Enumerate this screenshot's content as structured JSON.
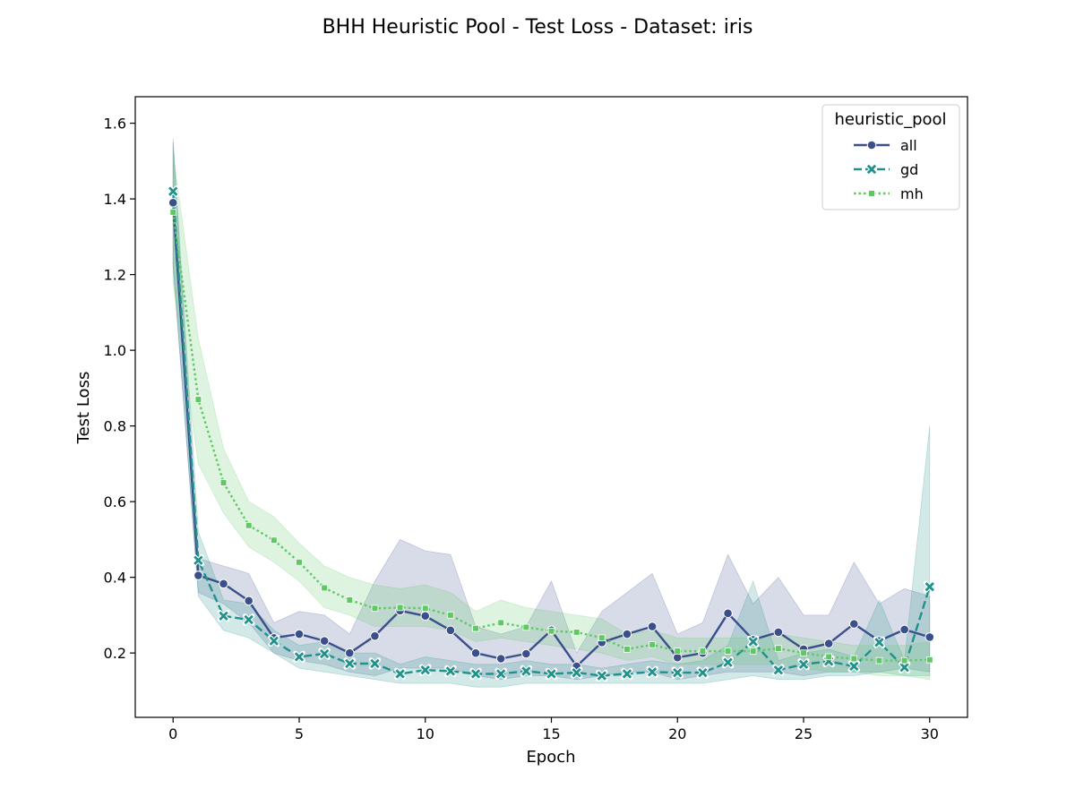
{
  "chart_data": {
    "type": "line",
    "title": "BHH Heuristic Pool - Test Loss - Dataset: iris",
    "xlabel": "Epoch",
    "ylabel": "Test Loss",
    "xlim": [
      -1.5,
      31.5
    ],
    "ylim": [
      0.03,
      1.67
    ],
    "xticks": [
      0,
      5,
      10,
      15,
      20,
      25,
      30
    ],
    "yticks": [
      0.2,
      0.4,
      0.6,
      0.8,
      1.0,
      1.2,
      1.4,
      1.6
    ],
    "ytick_labels": [
      "0.2",
      "0.4",
      "0.6",
      "0.8",
      "1.0",
      "1.2",
      "1.4",
      "1.6"
    ],
    "grid": false,
    "legend": {
      "title": "heuristic_pool",
      "position": "upper-right"
    },
    "x": [
      0,
      1,
      2,
      3,
      4,
      5,
      6,
      7,
      8,
      9,
      10,
      11,
      12,
      13,
      14,
      15,
      16,
      17,
      18,
      19,
      20,
      21,
      22,
      23,
      24,
      25,
      26,
      27,
      28,
      29,
      30
    ],
    "series": [
      {
        "name": "all",
        "color": "#3b4f8a",
        "line_style": "solid",
        "marker": "circle",
        "values": [
          1.39,
          0.405,
          0.383,
          0.338,
          0.24,
          0.25,
          0.232,
          0.2,
          0.245,
          0.312,
          0.298,
          0.26,
          0.2,
          0.185,
          0.198,
          0.26,
          0.165,
          0.228,
          0.25,
          0.27,
          0.188,
          0.2,
          0.305,
          0.235,
          0.255,
          0.21,
          0.225,
          0.277,
          0.232,
          0.262,
          0.242
        ],
        "ci_low": [
          1.22,
          0.36,
          0.33,
          0.28,
          0.2,
          0.18,
          0.17,
          0.15,
          0.14,
          0.16,
          0.16,
          0.16,
          0.14,
          0.13,
          0.14,
          0.14,
          0.13,
          0.14,
          0.15,
          0.15,
          0.13,
          0.14,
          0.15,
          0.15,
          0.15,
          0.14,
          0.15,
          0.15,
          0.15,
          0.16,
          0.15
        ],
        "ci_high": [
          1.55,
          0.45,
          0.43,
          0.41,
          0.28,
          0.31,
          0.3,
          0.25,
          0.39,
          0.5,
          0.47,
          0.46,
          0.27,
          0.25,
          0.27,
          0.39,
          0.2,
          0.31,
          0.36,
          0.41,
          0.25,
          0.28,
          0.46,
          0.33,
          0.4,
          0.3,
          0.3,
          0.44,
          0.33,
          0.37,
          0.35
        ]
      },
      {
        "name": "gd",
        "color": "#21918c",
        "line_style": "dashed",
        "marker": "x",
        "values": [
          1.42,
          0.445,
          0.298,
          0.288,
          0.232,
          0.19,
          0.198,
          0.172,
          0.172,
          0.145,
          0.155,
          0.152,
          0.145,
          0.145,
          0.152,
          0.145,
          0.148,
          0.14,
          0.145,
          0.15,
          0.148,
          0.148,
          0.175,
          0.23,
          0.155,
          0.17,
          0.178,
          0.165,
          0.228,
          0.162,
          0.375
        ],
        "ci_low": [
          1.23,
          0.35,
          0.26,
          0.24,
          0.2,
          0.16,
          0.15,
          0.14,
          0.13,
          0.12,
          0.12,
          0.12,
          0.11,
          0.11,
          0.12,
          0.12,
          0.12,
          0.12,
          0.12,
          0.12,
          0.12,
          0.12,
          0.13,
          0.14,
          0.13,
          0.13,
          0.14,
          0.14,
          0.15,
          0.14,
          0.14
        ],
        "ci_high": [
          1.56,
          0.52,
          0.34,
          0.33,
          0.26,
          0.22,
          0.23,
          0.2,
          0.2,
          0.17,
          0.19,
          0.18,
          0.17,
          0.17,
          0.18,
          0.17,
          0.17,
          0.16,
          0.17,
          0.18,
          0.17,
          0.18,
          0.22,
          0.39,
          0.18,
          0.2,
          0.21,
          0.19,
          0.34,
          0.18,
          0.8
        ]
      },
      {
        "name": "mh",
        "color": "#5ec962",
        "line_style": "dotted",
        "marker": "square",
        "values": [
          1.365,
          0.87,
          0.65,
          0.537,
          0.498,
          0.44,
          0.372,
          0.34,
          0.318,
          0.32,
          0.318,
          0.3,
          0.265,
          0.28,
          0.268,
          0.258,
          0.255,
          0.24,
          0.21,
          0.222,
          0.205,
          0.205,
          0.205,
          0.205,
          0.212,
          0.2,
          0.19,
          0.185,
          0.18,
          0.18,
          0.182
        ],
        "ci_low": [
          1.18,
          0.7,
          0.57,
          0.48,
          0.44,
          0.39,
          0.32,
          0.3,
          0.27,
          0.27,
          0.27,
          0.26,
          0.23,
          0.24,
          0.23,
          0.22,
          0.21,
          0.2,
          0.18,
          0.19,
          0.17,
          0.17,
          0.17,
          0.17,
          0.17,
          0.16,
          0.15,
          0.15,
          0.14,
          0.14,
          0.13
        ],
        "ci_high": [
          1.52,
          1.03,
          0.74,
          0.6,
          0.56,
          0.49,
          0.43,
          0.4,
          0.38,
          0.37,
          0.38,
          0.36,
          0.31,
          0.34,
          0.32,
          0.31,
          0.3,
          0.29,
          0.25,
          0.26,
          0.24,
          0.24,
          0.24,
          0.24,
          0.25,
          0.24,
          0.23,
          0.22,
          0.22,
          0.22,
          0.23
        ]
      }
    ]
  }
}
